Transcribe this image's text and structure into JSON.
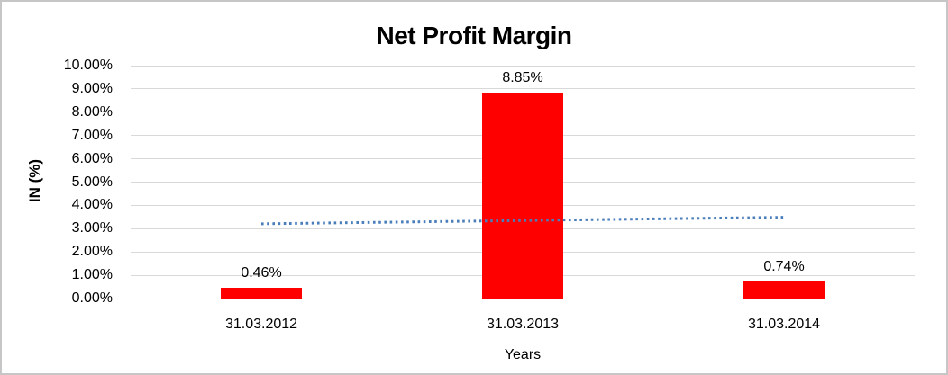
{
  "chart_data": {
    "type": "bar",
    "title": "Net Profit Margin",
    "xlabel": "Years",
    "ylabel": "IN (%)",
    "categories": [
      "31.03.2012",
      "31.03.2013",
      "31.03.2014"
    ],
    "values": [
      0.46,
      8.85,
      0.74
    ],
    "data_labels": [
      "0.46%",
      "8.85%",
      "0.74%"
    ],
    "ylim": [
      0,
      10
    ],
    "ytick_step": 1,
    "ytick_labels": [
      "0.00%",
      "1.00%",
      "2.00%",
      "3.00%",
      "4.00%",
      "5.00%",
      "6.00%",
      "7.00%",
      "8.00%",
      "9.00%",
      "10.00%"
    ],
    "grid": true,
    "legend": "none",
    "trendline": {
      "type": "linear",
      "style": "dotted",
      "start_value": 3.21,
      "end_value": 3.49
    },
    "colors": {
      "bar": "#ff0000",
      "trendline": "#4a7ebb",
      "gridline": "#d9d9d9",
      "text": "#000000",
      "frame_border": "#c6c6c6",
      "background": "#ffffff"
    }
  }
}
